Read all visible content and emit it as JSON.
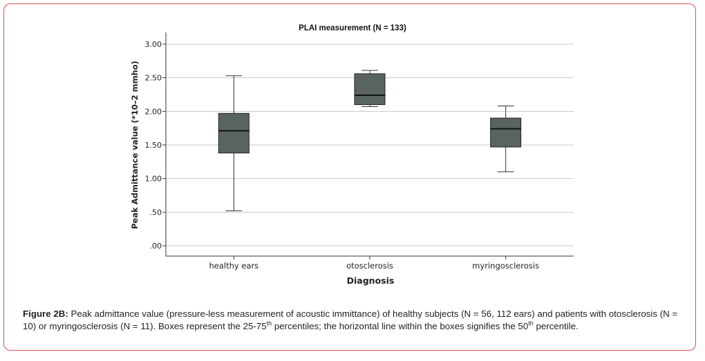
{
  "chart_data": {
    "type": "boxplot",
    "title": "PLAI measurement (N = 133)",
    "xlabel": "Diagnosis",
    "ylabel": "Peak Admittance value (*10–2 mmho)",
    "ylim": [
      0,
      3.0
    ],
    "yticks": [
      0,
      0.5,
      1.0,
      1.5,
      2.0,
      2.5,
      3.0
    ],
    "ytick_labels": [
      ".00",
      ".50",
      "1.00",
      "1.50",
      "2.00",
      "2.50",
      "3.00"
    ],
    "grid": true,
    "box_color": "#59645e",
    "categories": [
      "healthy ears",
      "otosclerosis",
      "myringosclerosis"
    ],
    "boxes": [
      {
        "whisker_low": 0.52,
        "q1": 1.38,
        "median": 1.71,
        "q3": 1.97,
        "whisker_high": 2.53
      },
      {
        "whisker_low": 2.07,
        "q1": 2.1,
        "median": 2.24,
        "q3": 2.56,
        "whisker_high": 2.61
      },
      {
        "whisker_low": 1.1,
        "q1": 1.47,
        "median": 1.74,
        "q3": 1.9,
        "whisker_high": 2.08
      }
    ]
  },
  "caption": {
    "label": "Figure 2B:",
    "text_1": " Peak admittance value (pressure-less measurement of acoustic immittance) of healthy subjects (N = 56, 112 ears) and patients with otosclerosis (N = 10) or myringosclerosis (N = 11). Boxes represent the 25-75",
    "sup_1": "th",
    "text_2": " percentiles; the horizontal line within the boxes signifies the 50",
    "sup_2": "th",
    "text_3": " percentile."
  }
}
